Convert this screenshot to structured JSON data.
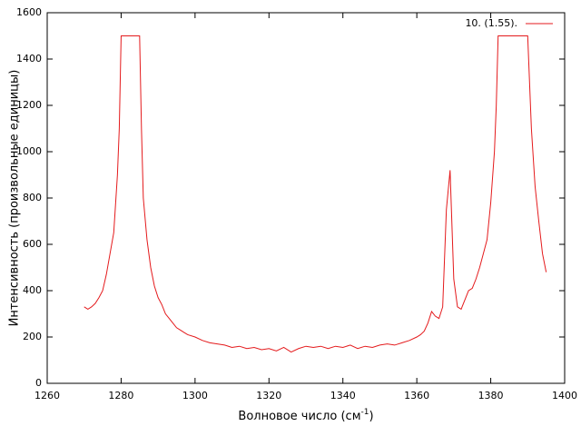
{
  "chart_data": {
    "type": "line",
    "xlabel": "Волновое число (см",
    "xlabel_sup": "-1",
    "xlabel_end": ")",
    "ylabel": "Интенсивность (произвольные единицы)",
    "xlim": [
      1260,
      1400
    ],
    "xticks": [
      1260,
      1280,
      1300,
      1320,
      1340,
      1360,
      1380,
      1400
    ],
    "ylim": [
      0,
      1600
    ],
    "yticks": [
      0,
      200,
      400,
      600,
      800,
      1000,
      1200,
      1400,
      1600
    ],
    "legend": "top-right",
    "x": [
      1270,
      1271,
      1272,
      1273,
      1274,
      1275,
      1276,
      1277,
      1278,
      1279,
      1279.5,
      1280,
      1285,
      1285.5,
      1286,
      1287,
      1288,
      1289,
      1290,
      1291,
      1292,
      1293,
      1294,
      1295,
      1296,
      1297,
      1298,
      1300,
      1302,
      1304,
      1306,
      1308,
      1310,
      1312,
      1314,
      1316,
      1318,
      1320,
      1322,
      1324,
      1326,
      1328,
      1330,
      1332,
      1334,
      1336,
      1338,
      1340,
      1342,
      1344,
      1346,
      1348,
      1350,
      1352,
      1354,
      1356,
      1358,
      1360,
      1361,
      1362,
      1363,
      1364,
      1365,
      1366,
      1367,
      1368,
      1369,
      1370,
      1371,
      1372,
      1373,
      1374,
      1375,
      1376,
      1377,
      1378,
      1379,
      1380,
      1381,
      1381.5,
      1382,
      1390,
      1391,
      1392,
      1393,
      1394,
      1395
    ],
    "series": [
      {
        "name": "10. (1.55).",
        "color": "#e41a1c",
        "values": [
          330,
          320,
          330,
          345,
          370,
          400,
          470,
          560,
          650,
          900,
          1100,
          1500,
          1500,
          1100,
          800,
          620,
          500,
          420,
          370,
          340,
          300,
          280,
          260,
          240,
          230,
          220,
          210,
          200,
          185,
          175,
          170,
          165,
          155,
          160,
          150,
          155,
          145,
          150,
          140,
          155,
          135,
          150,
          160,
          155,
          160,
          150,
          160,
          155,
          165,
          150,
          160,
          155,
          165,
          170,
          165,
          175,
          185,
          200,
          210,
          225,
          260,
          310,
          290,
          280,
          330,
          750,
          920,
          450,
          330,
          320,
          360,
          400,
          410,
          450,
          500,
          560,
          620,
          780,
          1000,
          1200,
          1500,
          1500,
          1100,
          850,
          700,
          560,
          480
        ]
      }
    ]
  }
}
